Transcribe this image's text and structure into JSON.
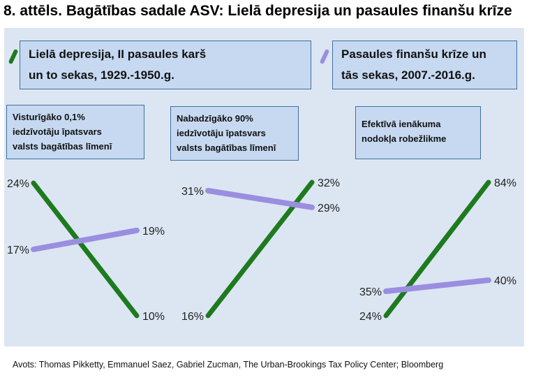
{
  "title": "8. attēls. Bagātības sadale ASV: Lielā depresija un pasaules finanšu krīze",
  "legend": [
    {
      "label_line1": "Lielā depresija, II pasaules karš",
      "label_line2": "un to sekas, 1929.-1950.g.",
      "color": "#1e7a1e"
    },
    {
      "label_line1": "Pasaules finanšu krīze un",
      "label_line2": "tās sekas, 2007.-2016.g.",
      "color": "#9a8ee0"
    }
  ],
  "panels": [
    {
      "line1": "Visturīgāko 0,1%",
      "line2": "iedzīvotāju īpatsvars",
      "line3": "valsts bagātības līmenī"
    },
    {
      "line1": "Nabadzīgāko 90%",
      "line2": "iedzīvotāju īpatsvars",
      "line3": "valsts bagātības līmenī"
    },
    {
      "line1": "Efektīvā ienākuma",
      "line2": "nodokļa robežlikme",
      "line3": ""
    }
  ],
  "chart_data": [
    {
      "type": "line",
      "title": "Visturīgāko 0,1% iedzīvotāju īpatsvars valsts bagātības līmenī",
      "unit": "%",
      "series": [
        {
          "name": "Lielā depresija, II pasaules karš un to sekas, 1929.-1950.g.",
          "start": 24,
          "end": 10,
          "start_label": "24%",
          "end_label": "10%"
        },
        {
          "name": "Pasaules finanšu krīze un tās sekas, 2007.-2016.g.",
          "start": 17,
          "end": 19,
          "start_label": "17%",
          "end_label": "19%"
        }
      ]
    },
    {
      "type": "line",
      "title": "Nabadzīgāko 90% iedzīvotāju īpatsvars valsts bagātības līmenī",
      "unit": "%",
      "series": [
        {
          "name": "Lielā depresija, II pasaules karš un to sekas, 1929.-1950.g.",
          "start": 16,
          "end": 32,
          "start_label": "16%",
          "end_label": "32%"
        },
        {
          "name": "Pasaules finanšu krīze un tās sekas, 2007.-2016.g.",
          "start": 31,
          "end": 29,
          "start_label": "31%",
          "end_label": "29%"
        }
      ]
    },
    {
      "type": "line",
      "title": "Efektīvā ienākuma nodokļa robežlikme",
      "unit": "%",
      "series": [
        {
          "name": "Lielā depresija, II pasaules karš un to sekas, 1929.-1950.g.",
          "start": 24,
          "end": 84,
          "start_label": "24%",
          "end_label": "84%"
        },
        {
          "name": "Pasaules finanšu krīze un tās sekas, 2007.-2016.g.",
          "start": 35,
          "end": 40,
          "start_label": "35%",
          "end_label": "40%"
        }
      ]
    }
  ],
  "source": "Avots: Thomas Pikketty, Emmanuel Saez, Gabriel Zucman, The Urban-Brookings Tax Policy Center; Bloomberg"
}
